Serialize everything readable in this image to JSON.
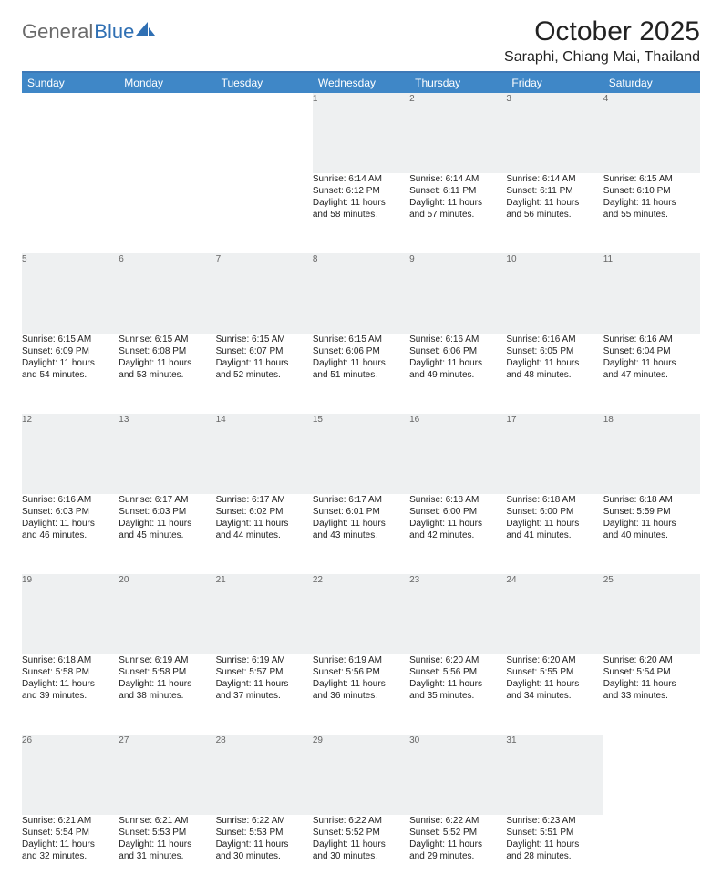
{
  "brand": {
    "word1": "General",
    "word2": "Blue"
  },
  "title": "October 2025",
  "location": "Saraphi, Chiang Mai, Thailand",
  "colors": {
    "header_bg": "#3f87c7",
    "rule": "#3d79b7",
    "daynum_bg": "#eef0f1",
    "logo_gray": "#6a6a6a",
    "logo_blue": "#2f6fb3"
  },
  "day_headers": [
    "Sunday",
    "Monday",
    "Tuesday",
    "Wednesday",
    "Thursday",
    "Friday",
    "Saturday"
  ],
  "weeks": [
    {
      "nums": [
        "",
        "",
        "",
        "1",
        "2",
        "3",
        "4"
      ],
      "cells": [
        null,
        null,
        null,
        {
          "sunrise": "Sunrise: 6:14 AM",
          "sunset": "Sunset: 6:12 PM",
          "day1": "Daylight: 11 hours",
          "day2": "and 58 minutes."
        },
        {
          "sunrise": "Sunrise: 6:14 AM",
          "sunset": "Sunset: 6:11 PM",
          "day1": "Daylight: 11 hours",
          "day2": "and 57 minutes."
        },
        {
          "sunrise": "Sunrise: 6:14 AM",
          "sunset": "Sunset: 6:11 PM",
          "day1": "Daylight: 11 hours",
          "day2": "and 56 minutes."
        },
        {
          "sunrise": "Sunrise: 6:15 AM",
          "sunset": "Sunset: 6:10 PM",
          "day1": "Daylight: 11 hours",
          "day2": "and 55 minutes."
        }
      ]
    },
    {
      "nums": [
        "5",
        "6",
        "7",
        "8",
        "9",
        "10",
        "11"
      ],
      "cells": [
        {
          "sunrise": "Sunrise: 6:15 AM",
          "sunset": "Sunset: 6:09 PM",
          "day1": "Daylight: 11 hours",
          "day2": "and 54 minutes."
        },
        {
          "sunrise": "Sunrise: 6:15 AM",
          "sunset": "Sunset: 6:08 PM",
          "day1": "Daylight: 11 hours",
          "day2": "and 53 minutes."
        },
        {
          "sunrise": "Sunrise: 6:15 AM",
          "sunset": "Sunset: 6:07 PM",
          "day1": "Daylight: 11 hours",
          "day2": "and 52 minutes."
        },
        {
          "sunrise": "Sunrise: 6:15 AM",
          "sunset": "Sunset: 6:06 PM",
          "day1": "Daylight: 11 hours",
          "day2": "and 51 minutes."
        },
        {
          "sunrise": "Sunrise: 6:16 AM",
          "sunset": "Sunset: 6:06 PM",
          "day1": "Daylight: 11 hours",
          "day2": "and 49 minutes."
        },
        {
          "sunrise": "Sunrise: 6:16 AM",
          "sunset": "Sunset: 6:05 PM",
          "day1": "Daylight: 11 hours",
          "day2": "and 48 minutes."
        },
        {
          "sunrise": "Sunrise: 6:16 AM",
          "sunset": "Sunset: 6:04 PM",
          "day1": "Daylight: 11 hours",
          "day2": "and 47 minutes."
        }
      ]
    },
    {
      "nums": [
        "12",
        "13",
        "14",
        "15",
        "16",
        "17",
        "18"
      ],
      "cells": [
        {
          "sunrise": "Sunrise: 6:16 AM",
          "sunset": "Sunset: 6:03 PM",
          "day1": "Daylight: 11 hours",
          "day2": "and 46 minutes."
        },
        {
          "sunrise": "Sunrise: 6:17 AM",
          "sunset": "Sunset: 6:03 PM",
          "day1": "Daylight: 11 hours",
          "day2": "and 45 minutes."
        },
        {
          "sunrise": "Sunrise: 6:17 AM",
          "sunset": "Sunset: 6:02 PM",
          "day1": "Daylight: 11 hours",
          "day2": "and 44 minutes."
        },
        {
          "sunrise": "Sunrise: 6:17 AM",
          "sunset": "Sunset: 6:01 PM",
          "day1": "Daylight: 11 hours",
          "day2": "and 43 minutes."
        },
        {
          "sunrise": "Sunrise: 6:18 AM",
          "sunset": "Sunset: 6:00 PM",
          "day1": "Daylight: 11 hours",
          "day2": "and 42 minutes."
        },
        {
          "sunrise": "Sunrise: 6:18 AM",
          "sunset": "Sunset: 6:00 PM",
          "day1": "Daylight: 11 hours",
          "day2": "and 41 minutes."
        },
        {
          "sunrise": "Sunrise: 6:18 AM",
          "sunset": "Sunset: 5:59 PM",
          "day1": "Daylight: 11 hours",
          "day2": "and 40 minutes."
        }
      ]
    },
    {
      "nums": [
        "19",
        "20",
        "21",
        "22",
        "23",
        "24",
        "25"
      ],
      "cells": [
        {
          "sunrise": "Sunrise: 6:18 AM",
          "sunset": "Sunset: 5:58 PM",
          "day1": "Daylight: 11 hours",
          "day2": "and 39 minutes."
        },
        {
          "sunrise": "Sunrise: 6:19 AM",
          "sunset": "Sunset: 5:58 PM",
          "day1": "Daylight: 11 hours",
          "day2": "and 38 minutes."
        },
        {
          "sunrise": "Sunrise: 6:19 AM",
          "sunset": "Sunset: 5:57 PM",
          "day1": "Daylight: 11 hours",
          "day2": "and 37 minutes."
        },
        {
          "sunrise": "Sunrise: 6:19 AM",
          "sunset": "Sunset: 5:56 PM",
          "day1": "Daylight: 11 hours",
          "day2": "and 36 minutes."
        },
        {
          "sunrise": "Sunrise: 6:20 AM",
          "sunset": "Sunset: 5:56 PM",
          "day1": "Daylight: 11 hours",
          "day2": "and 35 minutes."
        },
        {
          "sunrise": "Sunrise: 6:20 AM",
          "sunset": "Sunset: 5:55 PM",
          "day1": "Daylight: 11 hours",
          "day2": "and 34 minutes."
        },
        {
          "sunrise": "Sunrise: 6:20 AM",
          "sunset": "Sunset: 5:54 PM",
          "day1": "Daylight: 11 hours",
          "day2": "and 33 minutes."
        }
      ]
    },
    {
      "nums": [
        "26",
        "27",
        "28",
        "29",
        "30",
        "31",
        ""
      ],
      "cells": [
        {
          "sunrise": "Sunrise: 6:21 AM",
          "sunset": "Sunset: 5:54 PM",
          "day1": "Daylight: 11 hours",
          "day2": "and 32 minutes."
        },
        {
          "sunrise": "Sunrise: 6:21 AM",
          "sunset": "Sunset: 5:53 PM",
          "day1": "Daylight: 11 hours",
          "day2": "and 31 minutes."
        },
        {
          "sunrise": "Sunrise: 6:22 AM",
          "sunset": "Sunset: 5:53 PM",
          "day1": "Daylight: 11 hours",
          "day2": "and 30 minutes."
        },
        {
          "sunrise": "Sunrise: 6:22 AM",
          "sunset": "Sunset: 5:52 PM",
          "day1": "Daylight: 11 hours",
          "day2": "and 30 minutes."
        },
        {
          "sunrise": "Sunrise: 6:22 AM",
          "sunset": "Sunset: 5:52 PM",
          "day1": "Daylight: 11 hours",
          "day2": "and 29 minutes."
        },
        {
          "sunrise": "Sunrise: 6:23 AM",
          "sunset": "Sunset: 5:51 PM",
          "day1": "Daylight: 11 hours",
          "day2": "and 28 minutes."
        },
        null
      ]
    }
  ]
}
